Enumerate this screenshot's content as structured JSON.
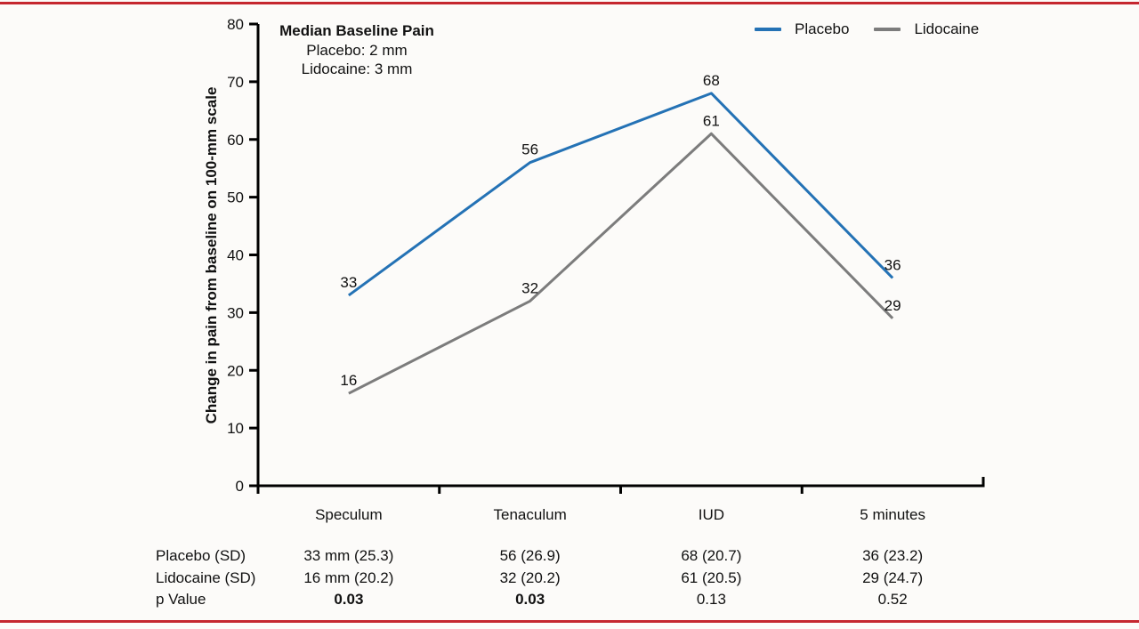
{
  "figure": {
    "annotation": {
      "title": "Median Baseline Pain",
      "lines": [
        "Placebo: 2 mm",
        "Lidocaine: 3 mm"
      ]
    },
    "colors": {
      "placebo": "#2472b5",
      "lidocaine": "#7c7c7c",
      "rule_red": "#c5272f",
      "axis": "#000000"
    }
  },
  "chart_data": {
    "type": "line",
    "title": "",
    "categories": [
      "Speculum",
      "Tenaculum",
      "IUD",
      "5 minutes"
    ],
    "series": [
      {
        "name": "Placebo",
        "values": [
          33,
          56,
          68,
          36
        ],
        "color_key": "placebo"
      },
      {
        "name": "Lidocaine",
        "values": [
          16,
          32,
          61,
          29
        ],
        "color_key": "lidocaine"
      }
    ],
    "xlabel": "",
    "ylabel": "Change in pain from baseline on 100-mm scale",
    "ylim": [
      0,
      80
    ],
    "ytick_step": 10,
    "grid": false,
    "point_labels": true,
    "legend_position": "top-right"
  },
  "table": {
    "rows": [
      {
        "label": "Placebo (SD)",
        "cells": [
          "33 mm (25.3)",
          "56 (26.9)",
          "68 (20.7)",
          "36 (23.2)"
        ],
        "bold_cells": []
      },
      {
        "label": "Lidocaine (SD)",
        "cells": [
          "16 mm (20.2)",
          "32 (20.2)",
          "61 (20.5)",
          "29 (24.7)"
        ],
        "bold_cells": []
      },
      {
        "label": "p Value",
        "cells": [
          "0.03",
          "0.03",
          "0.13",
          "0.52"
        ],
        "bold_cells": [
          0,
          1
        ]
      }
    ]
  }
}
